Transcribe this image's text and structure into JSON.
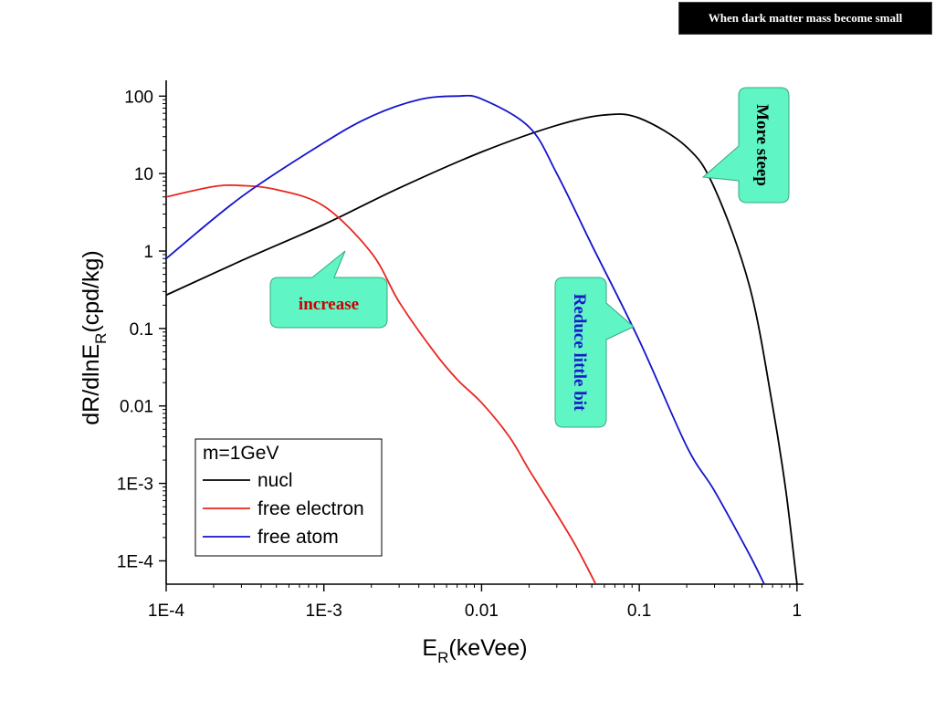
{
  "slide": {
    "title": "When dark matter mass become small"
  },
  "chart_data": {
    "type": "line",
    "xscale": "log",
    "yscale": "log",
    "xlim": [
      0.0001,
      1.1
    ],
    "ylim": [
      5e-05,
      160
    ],
    "x_ticks": [
      0.0001,
      0.001,
      0.01,
      0.1,
      1
    ],
    "x_tick_labels": [
      "1E-4",
      "1E-3",
      "0.01",
      "0.1",
      "1"
    ],
    "y_ticks": [
      0.0001,
      0.001,
      0.01,
      0.1,
      1,
      10,
      100
    ],
    "y_tick_labels": [
      "1E-4",
      "1E-3",
      "0.01",
      "0.1",
      "1",
      "10",
      "100"
    ],
    "xlabel": {
      "main": "E",
      "sub": "R",
      "rest": "(keVee)"
    },
    "ylabel": {
      "main": "dR/dlnE",
      "sub": "R",
      "rest": "(cpd/kg)"
    },
    "legend": {
      "title": "m=1GeV",
      "placement": "bottom-left"
    },
    "series": [
      {
        "name": "nucl",
        "color": "#000000",
        "points": [
          [
            0.0001,
            0.27
          ],
          [
            0.0003,
            0.75
          ],
          [
            0.001,
            2.2
          ],
          [
            0.003,
            6.5
          ],
          [
            0.01,
            19
          ],
          [
            0.03,
            42
          ],
          [
            0.06,
            57
          ],
          [
            0.1,
            52
          ],
          [
            0.2,
            22
          ],
          [
            0.3,
            6.5
          ],
          [
            0.5,
            0.35
          ],
          [
            0.7,
            0.01
          ],
          [
            0.85,
            0.0008
          ],
          [
            1.0,
            5e-05
          ]
        ]
      },
      {
        "name": "free electron",
        "color": "#e8261f",
        "points": [
          [
            0.0001,
            5
          ],
          [
            0.0002,
            6.8
          ],
          [
            0.0003,
            7
          ],
          [
            0.0005,
            6.2
          ],
          [
            0.001,
            3.8
          ],
          [
            0.002,
            0.95
          ],
          [
            0.003,
            0.22
          ],
          [
            0.005,
            0.05
          ],
          [
            0.007,
            0.022
          ],
          [
            0.01,
            0.011
          ],
          [
            0.015,
            0.004
          ],
          [
            0.02,
            0.0015
          ],
          [
            0.03,
            0.0004
          ],
          [
            0.04,
            0.00015
          ],
          [
            0.053,
            5e-05
          ]
        ]
      },
      {
        "name": "free atom",
        "color": "#1414cc",
        "points": [
          [
            0.0001,
            0.8
          ],
          [
            0.0003,
            5
          ],
          [
            0.001,
            25
          ],
          [
            0.002,
            55
          ],
          [
            0.004,
            90
          ],
          [
            0.007,
            100
          ],
          [
            0.01,
            92
          ],
          [
            0.02,
            40
          ],
          [
            0.03,
            10
          ],
          [
            0.05,
            1.2
          ],
          [
            0.1,
            0.07
          ],
          [
            0.2,
            0.003
          ],
          [
            0.3,
            0.0008
          ],
          [
            0.5,
            0.00012
          ],
          [
            0.62,
            5e-05
          ]
        ]
      }
    ]
  },
  "callouts": {
    "increase": {
      "text": "increase",
      "color": "#cc0000"
    },
    "reduce": {
      "text": "Reduce little bit",
      "color": "#1a1acc"
    },
    "steep": {
      "text": "More steep",
      "color": "#000000"
    },
    "fill": "#5ff5c4"
  }
}
